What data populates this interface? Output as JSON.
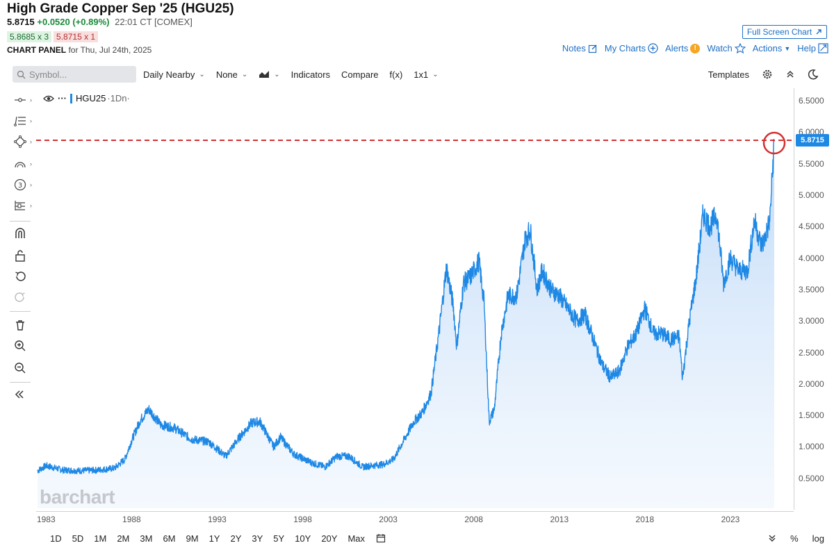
{
  "header": {
    "title": "High Grade Copper Sep '25 (HGU25)",
    "last": "5.8715",
    "change": "+0.0520 (+0.89%)",
    "time": "22:01 CT [COMEX]",
    "bid": "5.8685 x 3",
    "ask": "5.8715 x 1",
    "panel_label": "CHART PANEL",
    "panel_date": "for Thu, Jul 24th, 2025",
    "fullscreen_label": "Full Screen Chart"
  },
  "toplinks": {
    "notes": "Notes",
    "mycharts": "My Charts",
    "alerts": "Alerts",
    "alert_badge": "!",
    "watch": "Watch",
    "actions": "Actions",
    "help": "Help"
  },
  "toolbar": {
    "search_placeholder": "Symbol...",
    "period": "Daily Nearby",
    "overlay": "None",
    "indicators": "Indicators",
    "compare": "Compare",
    "fx": "f(x)",
    "layout": "1x1",
    "templates": "Templates"
  },
  "legend": {
    "symbol": "HGU25",
    "suffix": "·1Dn·",
    "menu": "···"
  },
  "price_axis": {
    "labels": [
      "6.5000",
      "6.0000",
      "5.5000",
      "5.0000",
      "4.5000",
      "4.0000",
      "3.5000",
      "3.0000",
      "2.5000",
      "2.0000",
      "1.5000",
      "1.0000",
      "0.5000"
    ],
    "last_tag": "5.8715"
  },
  "time_axis": {
    "labels": [
      "1983",
      "1988",
      "1993",
      "1998",
      "2003",
      "2008",
      "2013",
      "2018",
      "2023"
    ]
  },
  "bottom": {
    "periods": [
      "1D",
      "5D",
      "1M",
      "2M",
      "3M",
      "6M",
      "9M",
      "1Y",
      "2Y",
      "3Y",
      "5Y",
      "10Y",
      "20Y",
      "Max"
    ],
    "percent": "%",
    "log": "log"
  },
  "watermark": "barchart",
  "chart_data": {
    "type": "area",
    "series": [
      {
        "name": "HGU25",
        "x": [
          1982.5,
          1983.0,
          1984.0,
          1985.0,
          1986.0,
          1987.0,
          1987.6,
          1988.0,
          1988.5,
          1989.0,
          1989.7,
          1990.5,
          1991.5,
          1992.5,
          1993.5,
          1994.3,
          1995.0,
          1995.5,
          1996.3,
          1996.7,
          1997.5,
          1998.5,
          1999.3,
          2000.0,
          2000.7,
          2001.5,
          2002.0,
          2002.7,
          2003.3,
          2003.8,
          2004.5,
          2005.0,
          2005.5,
          2006.0,
          2006.4,
          2006.8,
          2007.0,
          2007.4,
          2007.8,
          2008.0,
          2008.3,
          2008.6,
          2008.9,
          2009.2,
          2009.6,
          2010.0,
          2010.5,
          2011.0,
          2011.3,
          2011.7,
          2012.0,
          2012.5,
          2013.0,
          2013.5,
          2014.0,
          2014.5,
          2015.0,
          2015.5,
          2016.0,
          2016.5,
          2017.0,
          2017.5,
          2018.0,
          2018.5,
          2019.0,
          2019.5,
          2020.0,
          2020.2,
          2020.6,
          2021.0,
          2021.4,
          2021.8,
          2022.2,
          2022.6,
          2023.0,
          2023.5,
          2024.0,
          2024.4,
          2024.8,
          2025.0,
          2025.3,
          2025.56
        ],
        "y": [
          0.62,
          0.7,
          0.63,
          0.62,
          0.63,
          0.66,
          0.8,
          1.1,
          1.42,
          1.6,
          1.35,
          1.3,
          1.12,
          1.08,
          0.85,
          1.15,
          1.38,
          1.4,
          1.0,
          1.15,
          0.88,
          0.75,
          0.68,
          0.85,
          0.85,
          0.68,
          0.7,
          0.72,
          0.8,
          1.05,
          1.4,
          1.55,
          1.85,
          2.9,
          3.85,
          3.25,
          2.6,
          3.6,
          3.7,
          3.8,
          3.95,
          3.3,
          1.4,
          1.6,
          2.8,
          3.4,
          3.4,
          4.3,
          4.45,
          3.5,
          3.8,
          3.5,
          3.4,
          3.2,
          3.0,
          3.1,
          2.7,
          2.3,
          2.1,
          2.2,
          2.6,
          2.8,
          3.2,
          2.8,
          2.8,
          2.7,
          2.75,
          2.1,
          3.0,
          3.7,
          4.7,
          4.5,
          4.7,
          3.6,
          4.0,
          3.8,
          3.8,
          4.6,
          4.2,
          4.3,
          4.6,
          5.87
        ]
      }
    ],
    "xlim": [
      1982.5,
      2025.56
    ],
    "ylim": [
      0.0,
      6.7
    ],
    "last_value": 5.8715,
    "xlabel": "",
    "ylabel": "",
    "grid": false,
    "line_color": "#1e88e5",
    "fill_color": "#cfe3fb",
    "last_line_color": "#d32f2f"
  }
}
